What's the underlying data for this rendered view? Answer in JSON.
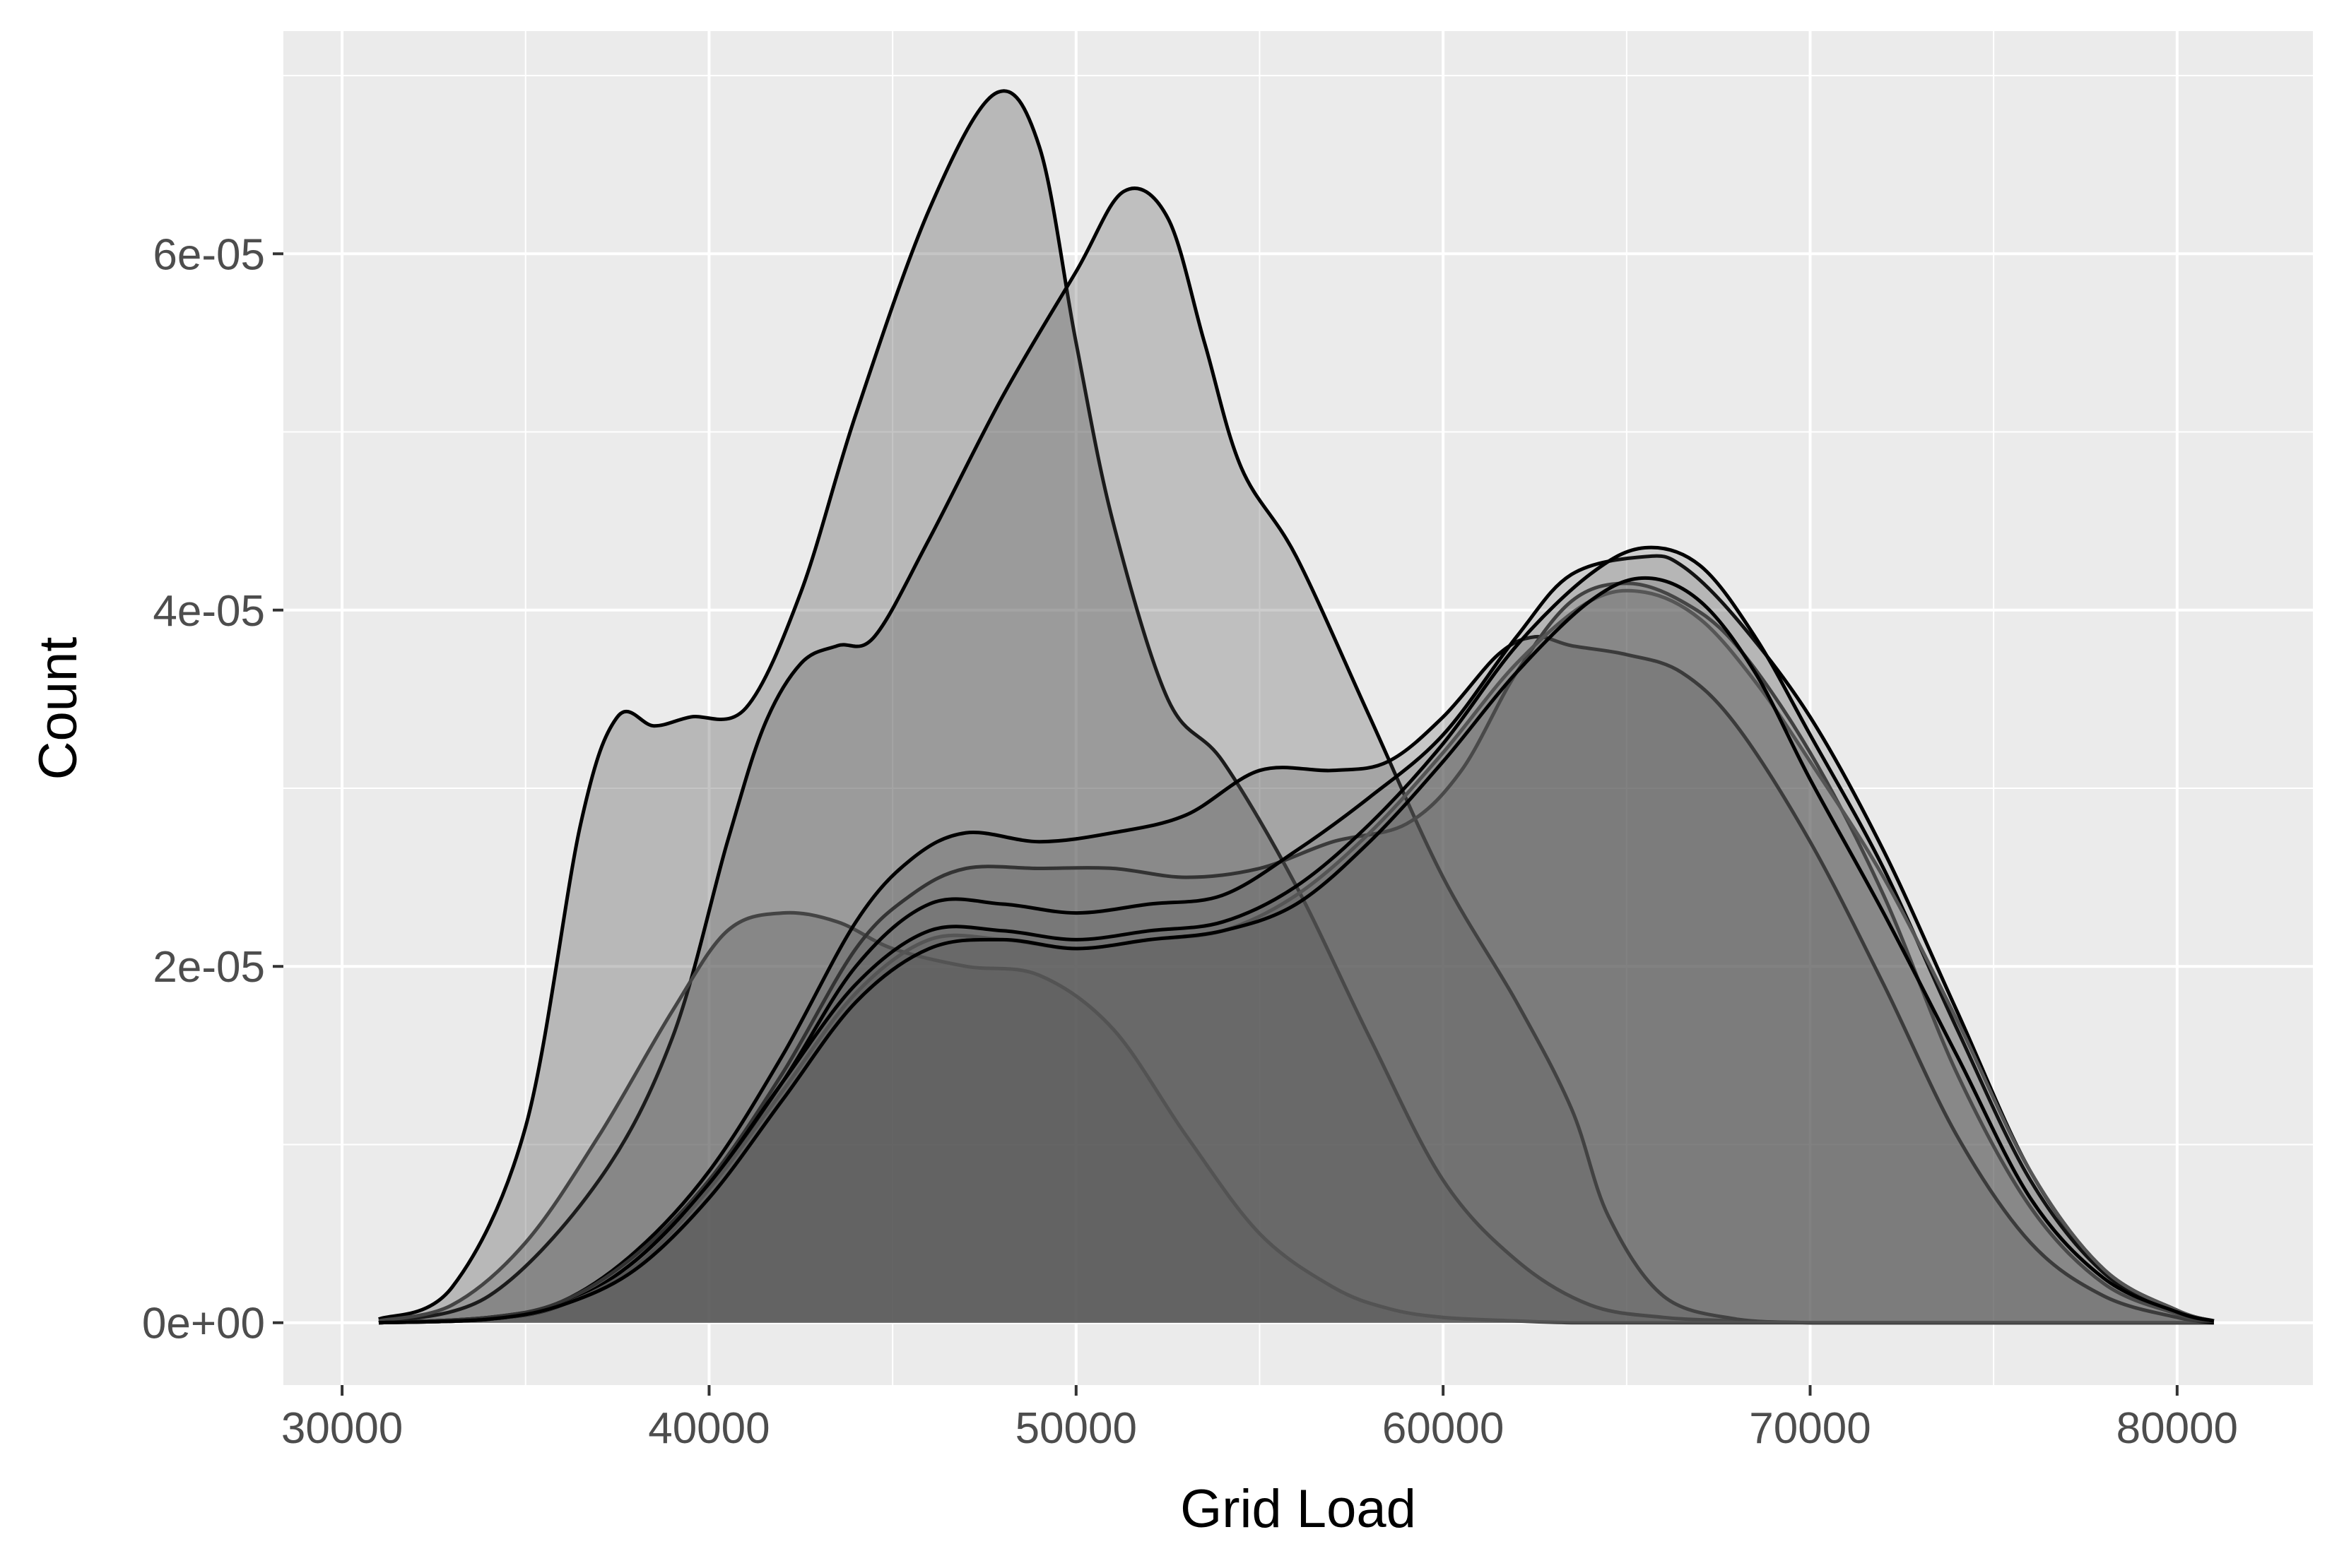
{
  "chart_data": {
    "type": "area",
    "xlabel": "Grid Load",
    "ylabel": "Count",
    "xlim": [
      28400,
      83700
    ],
    "ylim": [
      -3.5e-06,
      7.25e-05
    ],
    "x_ticks": [
      30000,
      40000,
      50000,
      60000,
      70000,
      80000
    ],
    "x_tick_labels": [
      "30000",
      "40000",
      "50000",
      "60000",
      "70000",
      "80000"
    ],
    "y_ticks": [
      0,
      2e-05,
      4e-05,
      6e-05
    ],
    "y_tick_labels": [
      "0e+00",
      "2e-05",
      "4e-05",
      "6e-05"
    ],
    "grid": true,
    "legend": "none",
    "colors": {
      "panel": "#ebebeb",
      "grid": "#ffffff",
      "fill": "#595959",
      "outline": "#000000"
    },
    "series": [
      {
        "x": [
          31000,
          33000,
          35000,
          36500,
          37500,
          38500,
          39500,
          41000,
          42500,
          44000,
          46000,
          47800,
          49000,
          50000,
          51000,
          52500,
          54000,
          56000,
          58000,
          60000,
          62000,
          64000,
          66000,
          68000,
          70000,
          72000,
          75000,
          78000,
          81000
        ],
        "values": [
          2e-07,
          2e-06,
          1.1e-05,
          2.8e-05,
          3.4e-05,
          3.35e-05,
          3.4e-05,
          3.45e-05,
          4.1e-05,
          5.1e-05,
          6.25e-05,
          6.9e-05,
          6.6e-05,
          5.5e-05,
          4.5e-05,
          3.5e-05,
          3.15e-05,
          2.45e-05,
          1.6e-05,
          8e-06,
          3.5e-06,
          1e-06,
          3e-07,
          1e-07,
          0,
          0,
          0,
          0,
          0
        ],
        "fill_opacity": 0.35,
        "stroke": "#000000"
      },
      {
        "x": [
          31000,
          34000,
          37000,
          39000,
          40500,
          41500,
          42500,
          43500,
          44500,
          46000,
          48000,
          50000,
          51300,
          52500,
          53500,
          54500,
          56000,
          58000,
          60000,
          62000,
          63500,
          64500,
          66000,
          68000,
          70000,
          72000,
          75000,
          78000,
          81000
        ],
        "values": [
          0,
          1.5e-06,
          8e-06,
          1.6e-05,
          2.7e-05,
          3.35e-05,
          3.7e-05,
          3.8e-05,
          3.85e-05,
          4.4e-05,
          5.2e-05,
          5.9e-05,
          6.35e-05,
          6.2e-05,
          5.5e-05,
          4.8e-05,
          4.3e-05,
          3.4e-05,
          2.5e-05,
          1.8e-05,
          1.2e-05,
          6e-06,
          1.5e-06,
          2e-07,
          0,
          0,
          0,
          0,
          0
        ],
        "fill_opacity": 0.3,
        "stroke": "#000000"
      },
      {
        "x": [
          31000,
          33000,
          35000,
          37000,
          39000,
          40500,
          42000,
          43500,
          45000,
          47000,
          49000,
          51000,
          53000,
          55000,
          57000,
          58500,
          60000,
          62000,
          63500,
          65000,
          66000,
          67500,
          70000,
          72000,
          75000,
          78000,
          81000
        ],
        "values": [
          1e-07,
          1e-06,
          4.5e-06,
          1.05e-05,
          1.75e-05,
          2.2e-05,
          2.3e-05,
          2.25e-05,
          2.1e-05,
          2e-05,
          1.95e-05,
          1.65e-05,
          1.05e-05,
          5e-06,
          2e-06,
          8e-07,
          3e-07,
          1e-07,
          0,
          0,
          0,
          0,
          0,
          0,
          0,
          0,
          0
        ],
        "fill_opacity": 0.3,
        "stroke": "#444444"
      },
      {
        "x": [
          31000,
          34000,
          36000,
          38000,
          40000,
          42000,
          44000,
          45500,
          47000,
          49000,
          51000,
          53000,
          55000,
          57000,
          58500,
          60000,
          61500,
          62500,
          63500,
          65000,
          66500,
          68000,
          70000,
          72000,
          74000,
          76000,
          78000,
          80000,
          81000
        ],
        "values": [
          0,
          3e-07,
          1.2e-06,
          4e-06,
          8.5e-06,
          1.5e-05,
          2.25e-05,
          2.6e-05,
          2.75e-05,
          2.7e-05,
          2.75e-05,
          2.85e-05,
          3.1e-05,
          3.1e-05,
          3.15e-05,
          3.4e-05,
          3.75e-05,
          3.85e-05,
          3.8e-05,
          3.75e-05,
          3.65e-05,
          3.35e-05,
          2.7e-05,
          1.9e-05,
          1.05e-05,
          4.5e-06,
          1.5e-06,
          3e-07,
          0
        ],
        "fill_opacity": 0.25,
        "stroke": "#000000"
      },
      {
        "x": [
          31000,
          34000,
          36000,
          38000,
          40000,
          42000,
          44000,
          45500,
          47000,
          49000,
          51000,
          53000,
          55000,
          57000,
          59000,
          60500,
          62000,
          63500,
          65000,
          66500,
          68000,
          70000,
          72000,
          74000,
          76000,
          78000,
          80000,
          81000
        ],
        "values": [
          0,
          3e-07,
          1.2e-06,
          3.8e-06,
          8e-06,
          1.4e-05,
          2.1e-05,
          2.4e-05,
          2.55e-05,
          2.55e-05,
          2.55e-05,
          2.5e-05,
          2.55e-05,
          2.7e-05,
          2.8e-05,
          3.1e-05,
          3.65e-05,
          4.05e-05,
          4.15e-05,
          4.05e-05,
          3.8e-05,
          3.2e-05,
          2.4e-05,
          1.4e-05,
          6.5e-06,
          2.2e-06,
          5e-07,
          1e-07
        ],
        "fill_opacity": 0.2,
        "stroke": "#333333"
      },
      {
        "x": [
          31000,
          34000,
          36000,
          38000,
          40000,
          42000,
          44000,
          46000,
          48000,
          50000,
          52000,
          54000,
          56000,
          58000,
          60000,
          62000,
          63500,
          65500,
          66500,
          68000,
          70000,
          72000,
          74000,
          76000,
          78000,
          80000,
          81000
        ],
        "values": [
          0,
          2e-07,
          1e-06,
          3.5e-06,
          7.8e-06,
          1.35e-05,
          2e-05,
          2.35e-05,
          2.35e-05,
          2.3e-05,
          2.35e-05,
          2.4e-05,
          2.65e-05,
          2.95e-05,
          3.3e-05,
          3.85e-05,
          4.2e-05,
          4.3e-05,
          4.25e-05,
          3.95e-05,
          3.4e-05,
          2.65e-05,
          1.75e-05,
          8.5e-06,
          3e-06,
          7e-07,
          1e-07
        ],
        "fill_opacity": 0.2,
        "stroke": "#000000"
      },
      {
        "x": [
          31000,
          34000,
          36000,
          38000,
          40000,
          42000,
          44000,
          46000,
          48000,
          50000,
          52000,
          54000,
          56000,
          58000,
          60000,
          62000,
          64000,
          65500,
          67000,
          68500,
          70000,
          72000,
          74000,
          76000,
          78000,
          80000,
          81000
        ],
        "values": [
          0,
          2e-07,
          1e-06,
          3.5e-06,
          7.8e-06,
          1.35e-05,
          1.9e-05,
          2.2e-05,
          2.2e-05,
          2.15e-05,
          2.2e-05,
          2.25e-05,
          2.45e-05,
          2.8e-05,
          3.25e-05,
          3.8e-05,
          4.2e-05,
          4.35e-05,
          4.25e-05,
          3.85e-05,
          3.3e-05,
          2.55e-05,
          1.65e-05,
          8e-06,
          2.8e-06,
          6e-07,
          1e-07
        ],
        "fill_opacity": 0.2,
        "stroke": "#000000"
      },
      {
        "x": [
          31000,
          34000,
          36000,
          38000,
          40000,
          42000,
          44000,
          46000,
          48000,
          50000,
          52000,
          54000,
          56000,
          58000,
          60000,
          62000,
          64000,
          65500,
          67000,
          68500,
          70000,
          72000,
          74000,
          76000,
          78000,
          80000,
          81000
        ],
        "values": [
          0,
          2e-07,
          1e-06,
          3.2e-06,
          7.5e-06,
          1.3e-05,
          1.85e-05,
          2.15e-05,
          2.15e-05,
          2.1e-05,
          2.15e-05,
          2.2e-05,
          2.4e-05,
          2.75e-05,
          3.2e-05,
          3.7e-05,
          4.05e-05,
          4.1e-05,
          3.95e-05,
          3.6e-05,
          3.15e-05,
          2.5e-05,
          1.7e-05,
          8.5e-06,
          3e-06,
          7e-07,
          1e-07
        ],
        "fill_opacity": 0.2,
        "stroke": "#555555"
      },
      {
        "x": [
          31000,
          34000,
          36000,
          38000,
          40000,
          42000,
          44000,
          46000,
          48000,
          50000,
          52000,
          54000,
          56000,
          58000,
          60000,
          62000,
          64000,
          65500,
          67000,
          68500,
          70000,
          72000,
          74000,
          76000,
          78000,
          80000,
          81000
        ],
        "values": [
          0,
          2e-07,
          1e-06,
          3e-06,
          7e-06,
          1.25e-05,
          1.8e-05,
          2.1e-05,
          2.15e-05,
          2.1e-05,
          2.15e-05,
          2.2e-05,
          2.35e-05,
          2.7e-05,
          3.15e-05,
          3.65e-05,
          4.05e-05,
          4.18e-05,
          4.05e-05,
          3.65e-05,
          3.05e-05,
          2.3e-05,
          1.5e-05,
          7e-06,
          2.5e-06,
          6e-07,
          1e-07
        ],
        "fill_opacity": 0.2,
        "stroke": "#000000"
      }
    ]
  }
}
